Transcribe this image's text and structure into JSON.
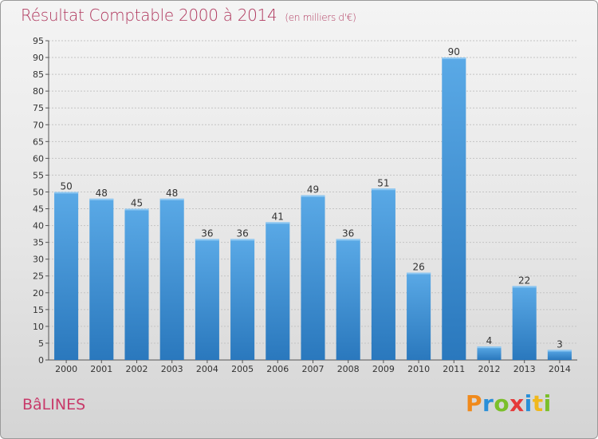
{
  "title": "Résultat Comptable 2000 à 2014",
  "subtitle": "(en milliers d'€)",
  "commune": "BâLINES",
  "logo": {
    "letters": [
      "P",
      "r",
      "o",
      "x",
      "i",
      "t",
      "i"
    ],
    "colors": [
      "#f08a1c",
      "#2a8fd8",
      "#7bbf2a",
      "#e53b3b",
      "#2a8fd8",
      "#f0b81c",
      "#7bbf2a"
    ]
  },
  "colors": {
    "bar_top": "#5aa9e6",
    "bar_bottom": "#2a78bd",
    "title": "#b0385e"
  },
  "chart_data": {
    "type": "bar",
    "categories": [
      "2000",
      "2001",
      "2002",
      "2003",
      "2004",
      "2005",
      "2006",
      "2007",
      "2008",
      "2009",
      "2010",
      "2011",
      "2012",
      "2013",
      "2014"
    ],
    "values": [
      50,
      48,
      45,
      48,
      36,
      36,
      41,
      49,
      36,
      51,
      26,
      90,
      4,
      22,
      3
    ],
    "ylim": [
      0,
      95
    ],
    "yticks": [
      0,
      5,
      10,
      15,
      20,
      25,
      30,
      35,
      40,
      45,
      50,
      55,
      60,
      65,
      70,
      75,
      80,
      85,
      90,
      95
    ],
    "grid": true,
    "title": "Résultat Comptable 2000 à 2014",
    "xlabel": "",
    "ylabel": ""
  }
}
